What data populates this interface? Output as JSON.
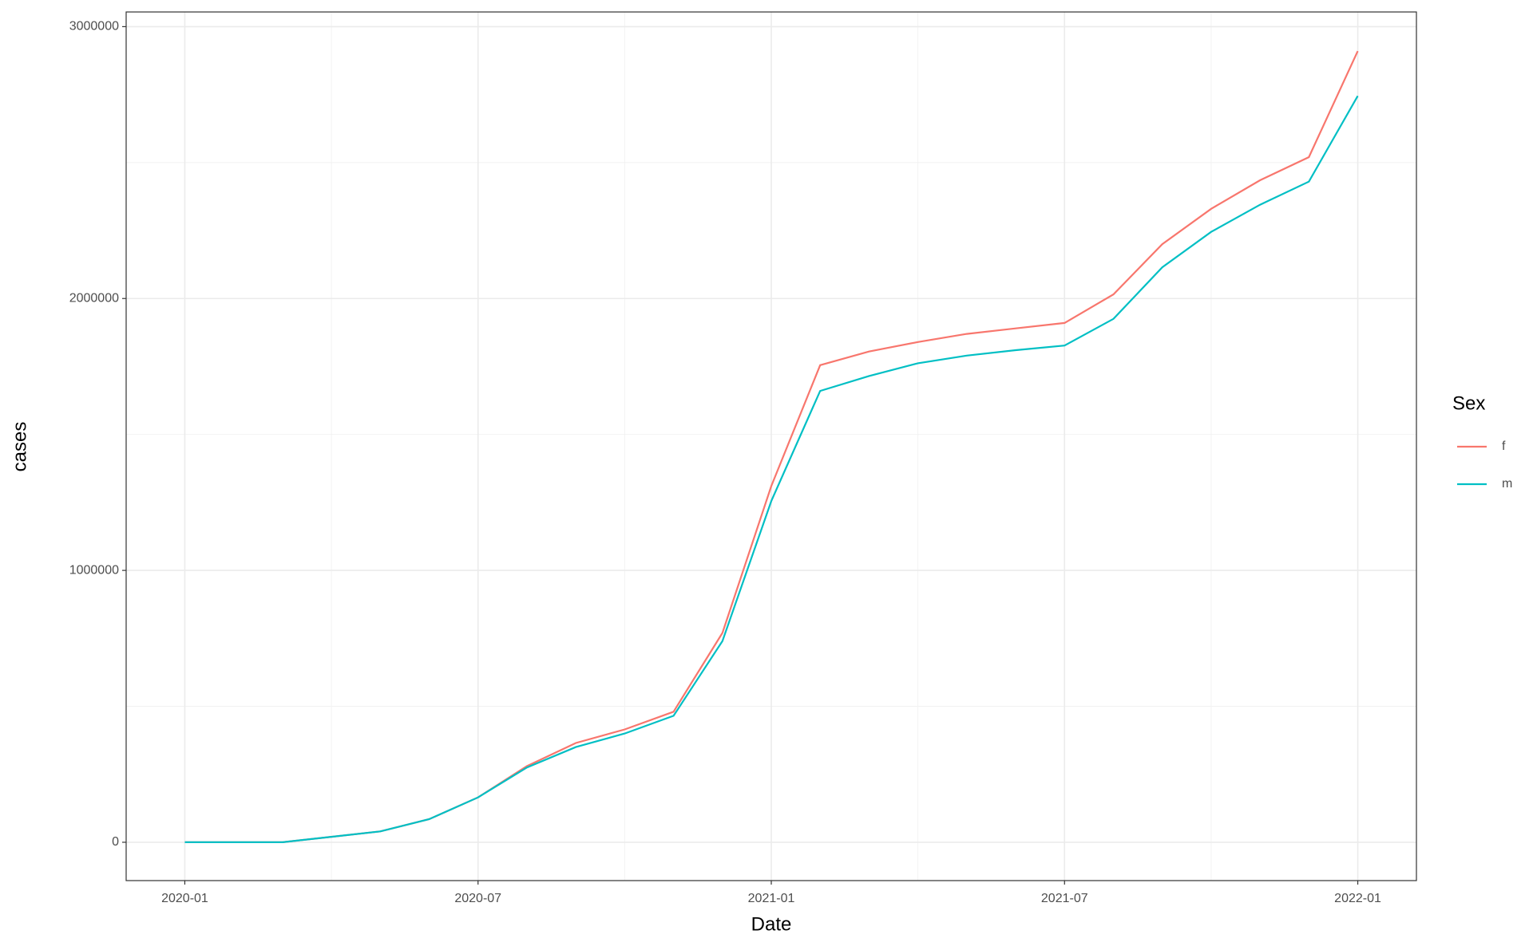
{
  "chart_data": {
    "type": "line",
    "x_label": "Date",
    "y_label": "cases",
    "legend_title": "Sex",
    "legend_position": "right",
    "grid": true,
    "x": [
      "2020-01",
      "2020-02",
      "2020-03",
      "2020-04",
      "2020-05",
      "2020-06",
      "2020-07",
      "2020-08",
      "2020-09",
      "2020-10",
      "2020-11",
      "2020-12",
      "2021-01",
      "2021-02",
      "2021-03",
      "2021-04",
      "2021-05",
      "2021-06",
      "2021-07",
      "2021-08",
      "2021-09",
      "2021-10",
      "2021-11",
      "2021-12",
      "2022-01"
    ],
    "xticks": [
      "2020-01",
      "2020-07",
      "2021-01",
      "2021-07",
      "2022-01"
    ],
    "ylim": [
      -141000,
      3054000
    ],
    "yticks": [
      0,
      1000000,
      2000000,
      3000000
    ],
    "series": [
      {
        "name": "f",
        "color": "#f8766d",
        "values": [
          0,
          0,
          0,
          20000,
          40000,
          85000,
          165000,
          280000,
          365000,
          415000,
          480000,
          770000,
          1310000,
          1755000,
          1805000,
          1840000,
          1870000,
          1890000,
          1910000,
          2015000,
          2200000,
          2330000,
          2435000,
          2520000,
          2910000
        ]
      },
      {
        "name": "m",
        "color": "#00bfc4",
        "values": [
          0,
          0,
          0,
          20000,
          40000,
          85000,
          165000,
          275000,
          350000,
          400000,
          465000,
          740000,
          1255000,
          1660000,
          1715000,
          1762000,
          1790000,
          1810000,
          1827000,
          1925000,
          2115000,
          2245000,
          2345000,
          2430000,
          2745000
        ]
      }
    ]
  }
}
